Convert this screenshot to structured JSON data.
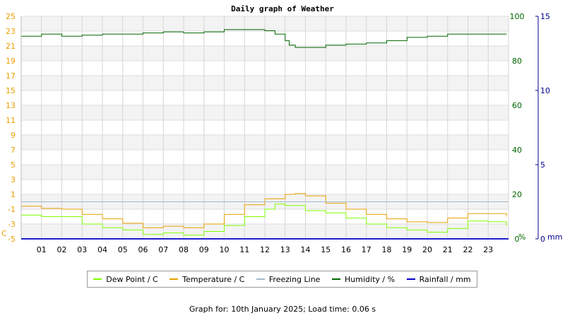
{
  "chart_data": {
    "type": "line",
    "title": "Daily graph of Weather",
    "x_ticks": [
      "01",
      "02",
      "03",
      "04",
      "05",
      "06",
      "07",
      "08",
      "09",
      "10",
      "11",
      "12",
      "13",
      "14",
      "15",
      "16",
      "17",
      "18",
      "19",
      "20",
      "21",
      "22",
      "23"
    ],
    "xlim": [
      0,
      24
    ],
    "temp_axis": {
      "ticks": [
        25,
        23,
        21,
        19,
        17,
        15,
        13,
        11,
        9,
        7,
        5,
        3,
        1,
        -1,
        -3,
        -5
      ],
      "ylim": [
        -5,
        25
      ],
      "unit_label": "C",
      "color": "#e8a000"
    },
    "humidity_axis": {
      "ticks": [
        100,
        80,
        60,
        40,
        20,
        0
      ],
      "ylim": [
        0,
        100
      ],
      "unit_label": "%",
      "color": "#006600"
    },
    "rain_axis": {
      "ticks": [
        15,
        10,
        5,
        0
      ],
      "ylim": [
        0,
        15
      ],
      "unit_label": "mm",
      "color": "#00008b"
    },
    "series": [
      {
        "name": "Temperature / C",
        "axis": "temp",
        "color": "#e8a000",
        "x": [
          0,
          1,
          2,
          3,
          4,
          5,
          6,
          7,
          8,
          9,
          10,
          11,
          12,
          13,
          13.5,
          14,
          15,
          16,
          17,
          18,
          19,
          20,
          21,
          22,
          23,
          23.9
        ],
        "y": [
          -0.6,
          -0.9,
          -1.0,
          -1.7,
          -2.3,
          -2.9,
          -3.5,
          -3.3,
          -3.5,
          -3.0,
          -1.7,
          -0.4,
          0.4,
          1.0,
          1.1,
          0.8,
          -0.2,
          -1.0,
          -1.7,
          -2.3,
          -2.7,
          -2.8,
          -2.2,
          -1.6,
          -1.6,
          -2.0
        ]
      },
      {
        "name": "Dew Point / C",
        "axis": "temp",
        "color": "#7fff00",
        "x": [
          0,
          1,
          2,
          3,
          4,
          5,
          6,
          7,
          8,
          9,
          10,
          11,
          12,
          12.5,
          13,
          14,
          15,
          16,
          17,
          18,
          19,
          20,
          21,
          22,
          23,
          23.9
        ],
        "y": [
          -1.8,
          -2.0,
          -2.0,
          -3.0,
          -3.5,
          -3.8,
          -4.4,
          -4.2,
          -4.5,
          -4.0,
          -3.2,
          -2.0,
          -1.0,
          -0.3,
          -0.5,
          -1.2,
          -1.5,
          -2.2,
          -3.0,
          -3.5,
          -3.8,
          -4.1,
          -3.6,
          -2.6,
          -2.7,
          -3.2
        ]
      },
      {
        "name": "Freezing Line",
        "axis": "temp",
        "color": "#a0b8d0",
        "x": [
          0,
          24
        ],
        "y": [
          0,
          0
        ]
      },
      {
        "name": "Humidity / %",
        "axis": "humidity",
        "color": "#006600",
        "x": [
          0,
          1,
          2,
          3,
          4,
          5,
          6,
          7,
          8,
          9,
          10,
          11,
          11.5,
          12,
          12.5,
          13,
          13.2,
          13.5,
          14,
          15,
          16,
          17,
          18,
          19,
          20,
          21,
          22,
          23,
          23.9
        ],
        "y": [
          91,
          92,
          91,
          91.5,
          92,
          92,
          92.5,
          93,
          92.5,
          93,
          94,
          94,
          94,
          93.5,
          92,
          89,
          87,
          86,
          86,
          87,
          87.5,
          88,
          89,
          90.5,
          91,
          92,
          92,
          92,
          92
        ]
      },
      {
        "name": "Rainfall / mm",
        "axis": "rain",
        "color": "#0000cc",
        "x": [
          0,
          24
        ],
        "y": [
          0,
          0
        ]
      }
    ],
    "legend_order": [
      "Dew Point / C",
      "Temperature / C",
      "Freezing Line",
      "Humidity / %",
      "Rainfall / mm"
    ],
    "grid": true,
    "legend_position": "bottom"
  },
  "footer": {
    "text": "Graph for: 10th January 2025; Load time: 0.06 s"
  }
}
